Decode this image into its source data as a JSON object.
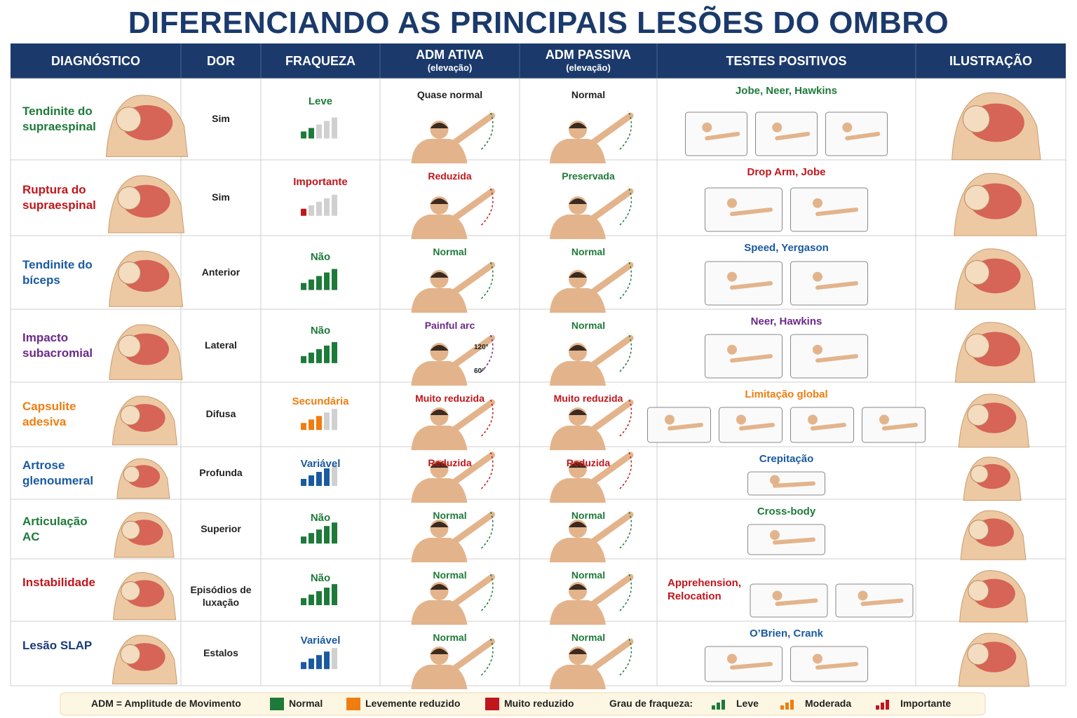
{
  "header": {
    "title": "DIFERENCIANDO AS PRINCIPAIS LESÕES DO OMBRO"
  },
  "table": {
    "columns": [
      {
        "text": "DIAGNÓSTICO"
      },
      {
        "text": "DOR"
      },
      {
        "text": "FRAQUEZA"
      },
      {
        "text": "ADM ATIVA",
        "sub": "(elevação)"
      },
      {
        "text": "ADM PASSIVA",
        "sub": "(elevação)"
      },
      {
        "text": "TESTES POSITIVOS"
      },
      {
        "text": "ILUSTRAÇÃO"
      }
    ],
    "rows": [
      {
        "diagnosis": "Tendinite do supraespinal",
        "diagnosis_color": "#1e7a3a",
        "pain": "Sim",
        "weakness": "Leve",
        "weakness_color": "#1e7a3a",
        "weakness_level": 2,
        "active": "Quase normal",
        "active_color": "#222222",
        "passive": "Normal",
        "passive_color": "#222222",
        "tests": "Jobe, Neer, Hawkins",
        "tests_color": "#1e7a3a"
      },
      {
        "diagnosis": "Ruptura do supraespinal",
        "diagnosis_color": "#c0161c",
        "pain": "Sim",
        "weakness": "Importante",
        "weakness_color": "#c0161c",
        "weakness_level": 1,
        "active": "Reduzida",
        "active_color": "#c0161c",
        "passive": "Preservada",
        "passive_color": "#1e7a3a",
        "tests": "Drop Arm, Jobe",
        "tests_color": "#c0161c"
      },
      {
        "diagnosis": "Tendinite do bíceps",
        "diagnosis_color": "#1a5aa0",
        "pain": "Anterior",
        "weakness": "Não",
        "weakness_color": "#1e7a3a",
        "weakness_level": 5,
        "active": "Normal",
        "active_color": "#1e7a3a",
        "passive": "Normal",
        "passive_color": "#1e7a3a",
        "tests": "Speed, Yergason",
        "tests_color": "#1a5aa0"
      },
      {
        "diagnosis": "Impacto subacromial",
        "diagnosis_color": "#6a2a8a",
        "pain": "Lateral",
        "weakness": "Não",
        "weakness_color": "#1e7a3a",
        "weakness_level": 5,
        "active": "Painful arc",
        "active_color": "#6a2a8a",
        "active_marks": [
          "120°",
          "60°"
        ],
        "passive": "Normal",
        "passive_color": "#1e7a3a",
        "tests": "Neer, Hawkins",
        "tests_color": "#6a2a8a"
      },
      {
        "diagnosis": "Capsulite adesiva",
        "diagnosis_color": "#ef7d0f",
        "pain": "Difusa",
        "weakness": "Secundária",
        "weakness_color": "#ef7d0f",
        "weakness_level": 3,
        "active": "Muito reduzida",
        "active_color": "#c0161c",
        "passive": "Muito reduzida",
        "passive_color": "#c0161c",
        "tests": "Limitação global",
        "tests_color": "#ef7d0f"
      },
      {
        "diagnosis": "Artrose glenoumeral",
        "diagnosis_color": "#1a5aa0",
        "pain": "Profunda",
        "weakness": "Variável",
        "weakness_color": "#1a5aa0",
        "weakness_level": 4,
        "active": "Reduzida",
        "active_color": "#c0161c",
        "passive": "Reduzida",
        "passive_color": "#c0161c",
        "tests": "Crepitação",
        "tests_color": "#1a5aa0"
      },
      {
        "diagnosis": "Articulação AC",
        "diagnosis_color": "#1e7a3a",
        "pain": "Superior",
        "weakness": "Não",
        "weakness_color": "#1e7a3a",
        "weakness_level": 5,
        "active": "Normal",
        "active_color": "#1e7a3a",
        "passive": "Normal",
        "passive_color": "#1e7a3a",
        "tests": "Cross-body",
        "tests_color": "#1e7a3a"
      },
      {
        "diagnosis": "Instabilidade",
        "diagnosis_color": "#c0161c",
        "pain": "Episódios de luxação",
        "weakness": "Não",
        "weakness_color": "#1e7a3a",
        "weakness_level": 5,
        "active": "Normal",
        "active_color": "#1e7a3a",
        "passive": "Normal",
        "passive_color": "#1e7a3a",
        "tests": "Apprehension, Relocation",
        "tests_color": "#c0161c"
      },
      {
        "diagnosis": "Lesão SLAP",
        "diagnosis_color": "#1a3a7a",
        "pain": "Estalos",
        "weakness": "Variável",
        "weakness_color": "#1a5aa0",
        "weakness_level": 4,
        "active": "Normal",
        "active_color": "#1e7a3a",
        "passive": "Normal",
        "passive_color": "#1e7a3a",
        "tests": "O’Brien, Crank",
        "tests_color": "#1a5aa0"
      }
    ]
  },
  "legend": {
    "definition": "ADM = Amplitude de Movimento",
    "items": [
      {
        "label": "Normal",
        "color": "#1e7a3a"
      },
      {
        "label": "Levemente reduzido",
        "color": "#ef7d0f"
      },
      {
        "label": "Muito reduzido",
        "color": "#c0161c"
      }
    ],
    "weakness_title": "Grau de fraqueza:",
    "weakness_items": [
      {
        "label": "Leve",
        "color": "#1e7a3a"
      },
      {
        "label": "Moderada",
        "color": "#ef7d0f"
      },
      {
        "label": "Importante",
        "color": "#c0161c"
      }
    ]
  }
}
